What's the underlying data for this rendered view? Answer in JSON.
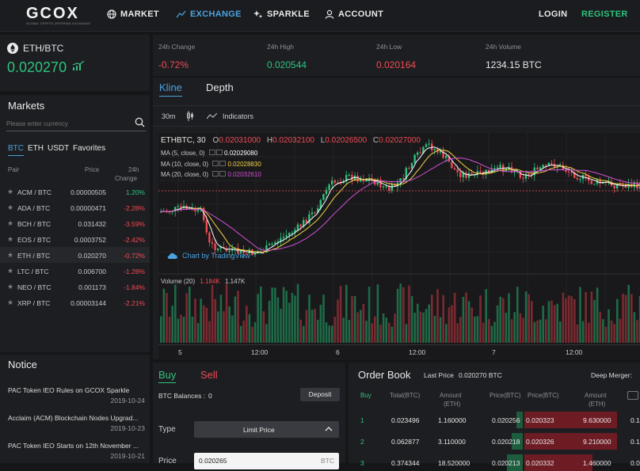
{
  "nav": {
    "logo": "GCOX",
    "logo_sub": "GLOBAL CRYPTO OFFERING EXCHANGE",
    "market": "MARKET",
    "exchange": "EXCHANGE",
    "sparkle": "SPARKLE",
    "account": "ACCOUNT",
    "login": "LOGIN",
    "register": "REGISTER"
  },
  "pair": {
    "name": "ETH/BTC",
    "price": "0.020270"
  },
  "stats": [
    {
      "label": "24h Change",
      "value": "-0.72%",
      "color": "#ef4b55"
    },
    {
      "label": "24h High",
      "value": "0.020544",
      "color": "#2ec27e"
    },
    {
      "label": "24h Low",
      "value": "0.020164",
      "color": "#ef4b55"
    },
    {
      "label": "24h Volume",
      "value": "1234.15 BTC",
      "color": "#e6e6e6"
    }
  ],
  "markets": {
    "title": "Markets",
    "search_placeholder": "Please enter currency",
    "tabs": [
      "BTC",
      "ETH",
      "USDT",
      "Favorites"
    ],
    "headers": {
      "pair": "Pair",
      "price": "Price",
      "change_1": "24h",
      "change_2": "Change"
    },
    "rows": [
      {
        "pair": "ACM / BTC",
        "price": "0.00000505",
        "change": "1.20%",
        "up": true
      },
      {
        "pair": "ADA / BTC",
        "price": "0.00000471",
        "change": "-2.28%",
        "up": false
      },
      {
        "pair": "BCH / BTC",
        "price": "0.031432",
        "change": "-3.59%",
        "up": false
      },
      {
        "pair": "EOS / BTC",
        "price": "0.0003752",
        "change": "-2.42%",
        "up": false
      },
      {
        "pair": "ETH / BTC",
        "price": "0.020270",
        "change": "-0.72%",
        "up": false
      },
      {
        "pair": "LTC / BTC",
        "price": "0.006700",
        "change": "-1.28%",
        "up": false
      },
      {
        "pair": "NEO / BTC",
        "price": "0.001173",
        "change": "-1.84%",
        "up": false
      },
      {
        "pair": "XRP / BTC",
        "price": "0.00003144",
        "change": "-2.21%",
        "up": false
      }
    ]
  },
  "notice": {
    "title": "Notice",
    "items": [
      {
        "title": "PAC Token IEO Rules on GCOX Sparkle",
        "date": "2019-10-24"
      },
      {
        "title": "Acclaim (ACM) Blockchain Nodes Upgrad...",
        "date": "2019-10-23"
      },
      {
        "title": "PAC Token IEO Starts on 12th November ...",
        "date": "2019-10-21"
      }
    ]
  },
  "chart": {
    "tab_kline": "Kline",
    "tab_depth": "Depth",
    "interval": "30m",
    "indicators": "Indicators",
    "symbol": "ETHBTC, 30",
    "ohlc": {
      "o_label": "O",
      "o": "0.02031000",
      "h_label": "H",
      "h": "0.02032100",
      "l_label": "L",
      "l": "0.02026500",
      "c_label": "C",
      "c": "0.02027000"
    },
    "ma": [
      {
        "label": "MA (5, close, 0)",
        "value": "0.02029080",
        "color": "#ffffff"
      },
      {
        "label": "MA (10, close, 0)",
        "value": "0.02028830",
        "color": "#f5d142"
      },
      {
        "label": "MA (20, close, 0)",
        "value": "0.02032610",
        "color": "#d04fd6"
      }
    ],
    "volume_label": "Volume (20)",
    "volume_v1": "1.184K",
    "volume_v2": "1.147K",
    "watermark": "Chart by TradingView",
    "x_labels": [
      "5",
      "12:00",
      "6",
      "12:00",
      "7",
      "12:00"
    ]
  },
  "trade": {
    "buy": "Buy",
    "sell": "Sell",
    "balances_label": "BTC Balances :",
    "balances_value": "0",
    "deposit": "Deposit",
    "type_label": "Type",
    "type_value": "Limit Price",
    "price_label": "Price",
    "price_value": "0.020265",
    "price_unit": "BTC"
  },
  "orderbook": {
    "title": "Order Book",
    "last_price_label": "Last Price",
    "last_price": "0.020270 BTC",
    "deep_merger": "Deep Merger:",
    "headers": {
      "buy": "Buy",
      "total": "Total(BTC)",
      "amount": "Amount",
      "amount_unit": "(ETH)",
      "price_buy": "Price(BTC)",
      "price_sell": "Price(BTC)",
      "amount_sell": "Amount",
      "amount_sell_unit": "(ETH)"
    },
    "rows": [
      {
        "n": "1",
        "total": "0.023496",
        "amount": "1.160000",
        "price": "0.020256",
        "sprice": "0.020323",
        "samount": "9.630000",
        "sextra": "0.1"
      },
      {
        "n": "2",
        "total": "0.062877",
        "amount": "3.110000",
        "price": "0.020218",
        "sprice": "0.020326",
        "samount": "9.210000",
        "sextra": "0.1"
      },
      {
        "n": "3",
        "total": "0.374344",
        "amount": "18.520000",
        "price": "0.020213",
        "sprice": "0.020332",
        "samount": "1.460000",
        "sextra": "0.0"
      }
    ]
  },
  "colors": {
    "up": "#2ec27e",
    "down": "#ef4b55",
    "accent": "#4aa3df"
  }
}
